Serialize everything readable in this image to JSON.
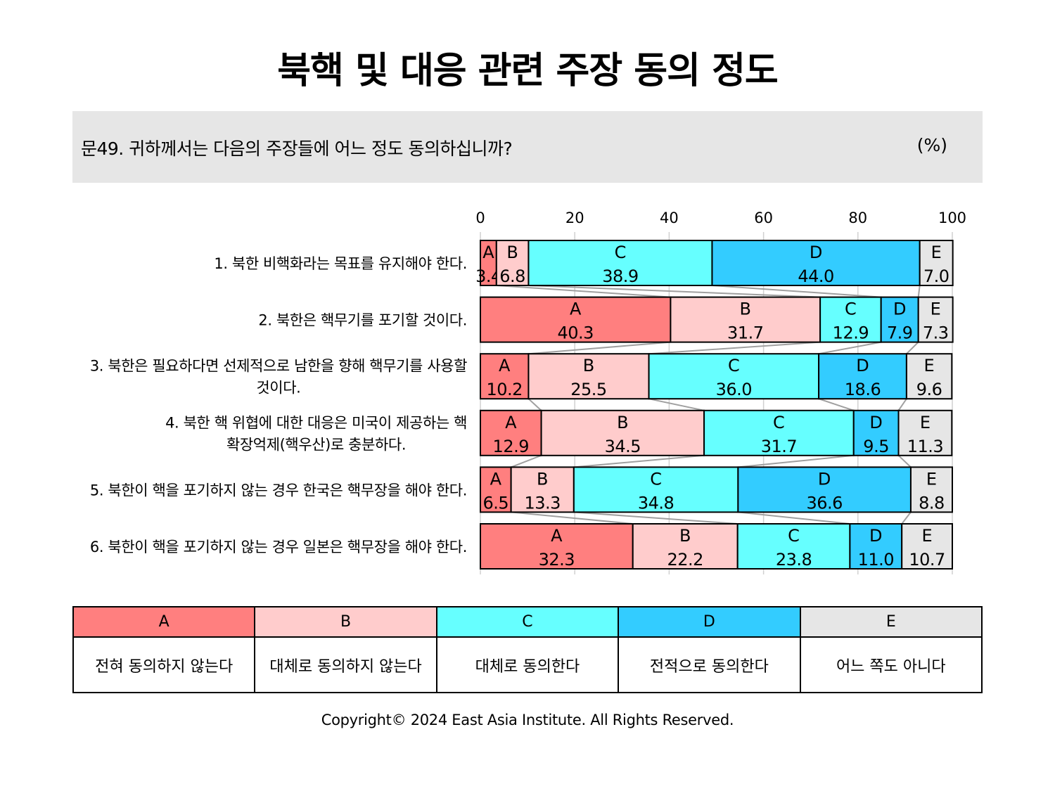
{
  "title": "북핵 및 대응 관련 주장 동의 정도",
  "question": "문49. 귀하께서는 다음의 주장들에 어느 정도 동의하십니까?",
  "unit": "(%)",
  "copyright": "Copyright© 2024 East Asia Institute. All Rights Reserved.",
  "colors": {
    "A": "#ff7f7f",
    "B": "#ffcccc",
    "C": "#66ffff",
    "D": "#33ccff",
    "E": "#e6e6e6"
  },
  "legend": [
    {
      "code": "A",
      "label": "전혀 동의하지 않는다"
    },
    {
      "code": "B",
      "label": "대체로 동의하지 않는다"
    },
    {
      "code": "C",
      "label": "대체로 동의한다"
    },
    {
      "code": "D",
      "label": "전적으로 동의한다"
    },
    {
      "code": "E",
      "label": "어느 쪽도 아니다"
    }
  ],
  "chart_data": {
    "type": "bar",
    "orientation": "horizontal",
    "stacked": true,
    "xlim": [
      0,
      100
    ],
    "xticks": [
      0,
      20,
      40,
      60,
      80,
      100
    ],
    "categories": [
      [
        "1. 북한 비핵화라는 목표를 유지해야 한다."
      ],
      [
        "2. 북한은 핵무기를 포기할 것이다."
      ],
      [
        "3. 북한은 필요하다면 선제적으로 남한을 향해 핵무기를 사용할",
        "것이다."
      ],
      [
        "4. 북한 핵 위협에 대한 대응은 미국이 제공하는 핵",
        "확장억제(핵우산)로 충분하다."
      ],
      [
        "5. 북한이 핵을 포기하지 않는 경우 한국은 핵무장을 해야 한다."
      ],
      [
        "6. 북한이 핵을 포기하지 않는 경우 일본은 핵무장을 해야 한다."
      ]
    ],
    "series": [
      {
        "name": "A",
        "values": [
          3.4,
          40.3,
          10.2,
          12.9,
          6.5,
          32.3
        ]
      },
      {
        "name": "B",
        "values": [
          6.8,
          31.7,
          25.5,
          34.5,
          13.3,
          22.2
        ]
      },
      {
        "name": "C",
        "values": [
          38.9,
          12.9,
          36.0,
          31.7,
          34.8,
          23.8
        ]
      },
      {
        "name": "D",
        "values": [
          44.0,
          7.9,
          18.6,
          9.5,
          36.6,
          11.0
        ]
      },
      {
        "name": "E",
        "values": [
          7.0,
          7.3,
          9.6,
          11.3,
          8.8,
          10.7
        ]
      }
    ],
    "grid": true,
    "series_lines": true
  }
}
